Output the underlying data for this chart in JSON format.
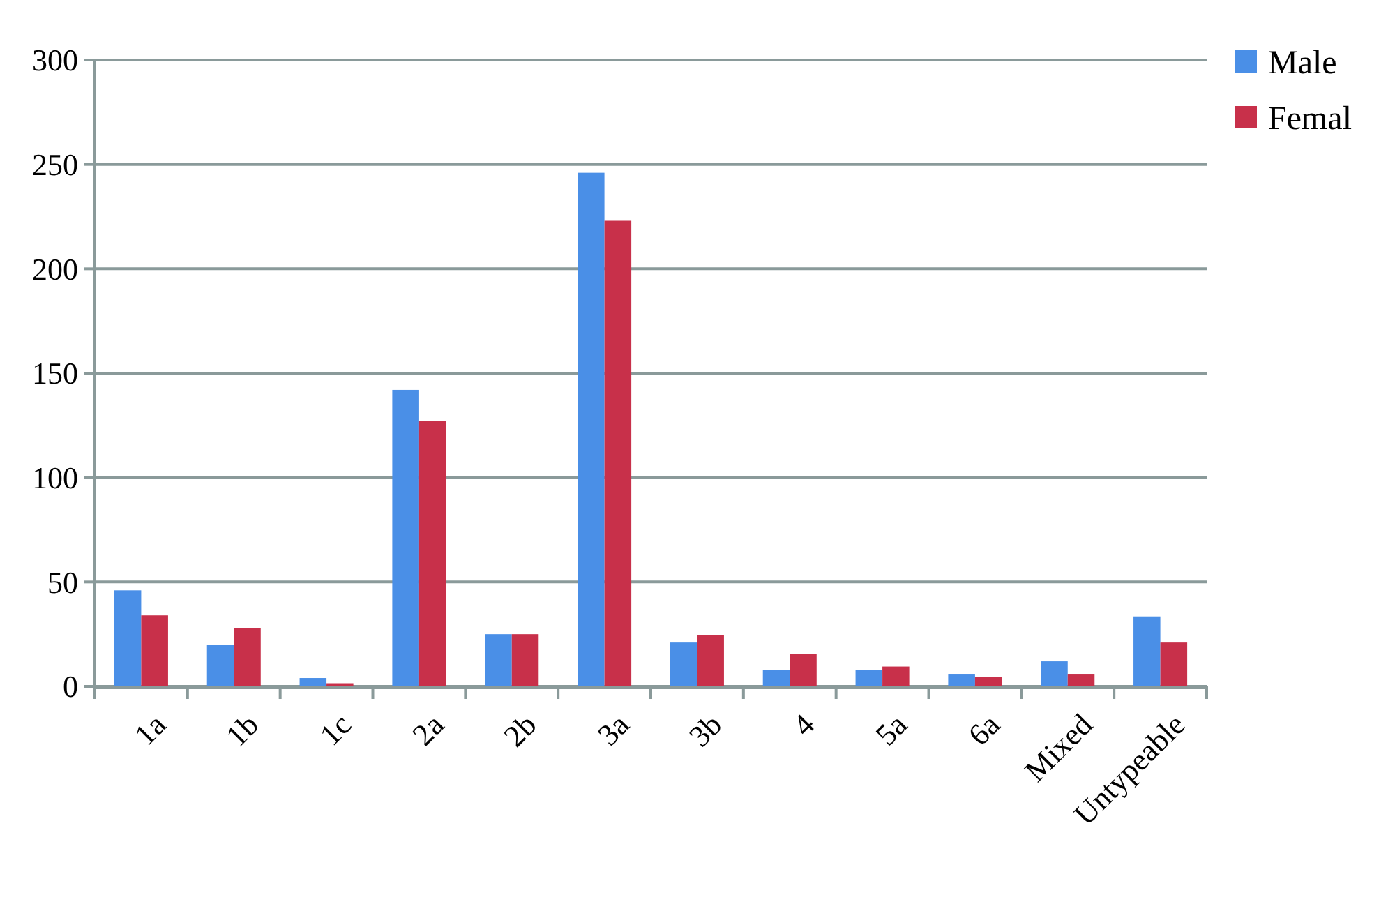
{
  "chart_data": {
    "type": "bar",
    "categories": [
      "1a",
      "1b",
      "1c",
      "2a",
      "2b",
      "3a",
      "3b",
      "4",
      "5a",
      "6a",
      "Mixed",
      "Untypeable"
    ],
    "series": [
      {
        "name": "Male",
        "color": "#4a8fe7",
        "values": [
          46,
          20,
          4,
          142,
          25,
          246,
          21,
          8,
          8,
          6,
          12,
          33.5
        ]
      },
      {
        "name": "Femal",
        "color": "#c8304a",
        "values": [
          34,
          28,
          1.5,
          127,
          25,
          223,
          24.5,
          15.5,
          9.5,
          4.5,
          6,
          21
        ]
      }
    ],
    "ylim": [
      0,
      300
    ],
    "yticks": [
      0,
      50,
      100,
      150,
      200,
      250,
      300
    ],
    "grid": "y",
    "legend": "top right"
  }
}
